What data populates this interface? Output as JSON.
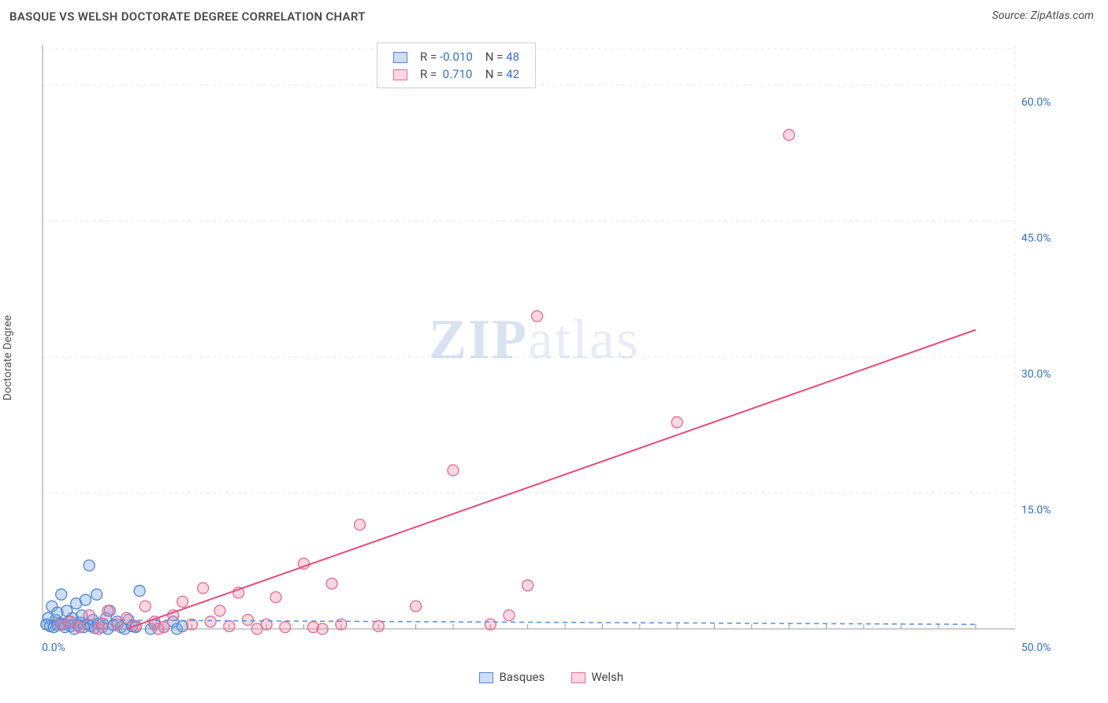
{
  "title": "BASQUE VS WELSH DOCTORATE DEGREE CORRELATION CHART",
  "source": "Source: ZipAtlas.com",
  "y_axis_label": "Doctorate Degree",
  "watermark_a": "ZIP",
  "watermark_b": "atlas",
  "chart": {
    "type": "scatter",
    "background_color": "#ffffff",
    "grid_color": "#e8e8e8",
    "axis_color": "#bdbdbd",
    "tick_color": "#3671c8",
    "xlim": [
      0,
      50
    ],
    "ylim": [
      0,
      64
    ],
    "x_ticks": [
      0,
      50
    ],
    "x_tick_labels": [
      "0.0%",
      "50.0%"
    ],
    "x_minor_step": 2,
    "y_grid": [
      15,
      30,
      45,
      60,
      64
    ],
    "y_tick_labels": [
      "15.0%",
      "30.0%",
      "45.0%",
      "60.0%"
    ],
    "marker_radius": 7,
    "marker_stroke_width": 1.3,
    "trend_line_width_pink": 2,
    "trend_line_width_blue": 1.5,
    "series": {
      "basques": {
        "label": "Basques",
        "fill": "rgba(112,160,224,0.35)",
        "stroke": "#4f86d1",
        "R": "-0.010",
        "N": "48",
        "trend": {
          "x1": 0,
          "y1": 1.0,
          "x2": 50,
          "y2": 0.5
        },
        "points": [
          [
            0.2,
            0.5
          ],
          [
            0.3,
            1.2
          ],
          [
            0.4,
            0.3
          ],
          [
            0.5,
            2.5
          ],
          [
            0.6,
            0.2
          ],
          [
            0.7,
            1.0
          ],
          [
            0.8,
            0.4
          ],
          [
            0.8,
            1.8
          ],
          [
            1.0,
            0.6
          ],
          [
            1.0,
            3.8
          ],
          [
            1.1,
            0.5
          ],
          [
            1.2,
            0.2
          ],
          [
            1.3,
            2.0
          ],
          [
            1.4,
            0.8
          ],
          [
            1.5,
            0.3
          ],
          [
            1.6,
            1.2
          ],
          [
            1.7,
            0.0
          ],
          [
            1.8,
            2.8
          ],
          [
            1.9,
            0.4
          ],
          [
            2.0,
            0.7
          ],
          [
            2.1,
            1.5
          ],
          [
            2.2,
            0.2
          ],
          [
            2.3,
            3.2
          ],
          [
            2.4,
            0.5
          ],
          [
            2.5,
            7.0
          ],
          [
            2.6,
            0.3
          ],
          [
            2.7,
            1.0
          ],
          [
            2.8,
            0.1
          ],
          [
            2.9,
            3.8
          ],
          [
            3.0,
            0.6
          ],
          [
            3.2,
            0.2
          ],
          [
            3.4,
            1.2
          ],
          [
            3.5,
            0.0
          ],
          [
            3.6,
            2.0
          ],
          [
            3.8,
            0.4
          ],
          [
            4.0,
            0.8
          ],
          [
            4.2,
            0.2
          ],
          [
            4.4,
            0.0
          ],
          [
            4.6,
            1.0
          ],
          [
            4.8,
            0.3
          ],
          [
            5.0,
            0.2
          ],
          [
            5.2,
            4.2
          ],
          [
            5.8,
            0.0
          ],
          [
            6.0,
            0.5
          ],
          [
            6.5,
            0.2
          ],
          [
            7.0,
            0.8
          ],
          [
            7.2,
            0.0
          ],
          [
            7.5,
            0.3
          ]
        ]
      },
      "welsh": {
        "label": "Welsh",
        "fill": "rgba(240,140,170,0.35)",
        "stroke": "#e46a95",
        "R": "0.710",
        "N": "42",
        "trend": {
          "x1": 4.5,
          "y1": 0.0,
          "x2": 50,
          "y2": 33.0
        },
        "points": [
          [
            1.0,
            0.5
          ],
          [
            1.5,
            0.8
          ],
          [
            2.0,
            0.2
          ],
          [
            2.5,
            1.5
          ],
          [
            3.0,
            0.0
          ],
          [
            3.5,
            2.0
          ],
          [
            4.0,
            0.5
          ],
          [
            4.5,
            1.2
          ],
          [
            5.0,
            0.3
          ],
          [
            5.5,
            2.5
          ],
          [
            6.0,
            0.8
          ],
          [
            6.5,
            0.2
          ],
          [
            7.0,
            1.5
          ],
          [
            7.5,
            3.0
          ],
          [
            8.0,
            0.5
          ],
          [
            8.6,
            4.5
          ],
          [
            9.0,
            0.8
          ],
          [
            9.5,
            2.0
          ],
          [
            10.0,
            0.3
          ],
          [
            10.5,
            4.0
          ],
          [
            11.0,
            1.0
          ],
          [
            12.0,
            0.5
          ],
          [
            12.5,
            3.5
          ],
          [
            13.0,
            0.2
          ],
          [
            14.0,
            7.2
          ],
          [
            14.5,
            0.2
          ],
          [
            15.0,
            0.0
          ],
          [
            15.5,
            5.0
          ],
          [
            16.0,
            0.5
          ],
          [
            17.0,
            11.5
          ],
          [
            18.0,
            0.3
          ],
          [
            20.0,
            2.5
          ],
          [
            22.0,
            17.5
          ],
          [
            24.0,
            0.5
          ],
          [
            25.0,
            1.5
          ],
          [
            26.0,
            4.8
          ],
          [
            26.5,
            34.5
          ],
          [
            34.0,
            22.8
          ],
          [
            40.0,
            54.5
          ],
          [
            6.2,
            0.0
          ],
          [
            3.2,
            0.6
          ],
          [
            11.5,
            0.0
          ]
        ]
      }
    }
  },
  "legend_top": {
    "r_label": "R =",
    "n_label": "N ="
  },
  "legend_bottom": {
    "items": [
      "basques",
      "welsh"
    ]
  }
}
